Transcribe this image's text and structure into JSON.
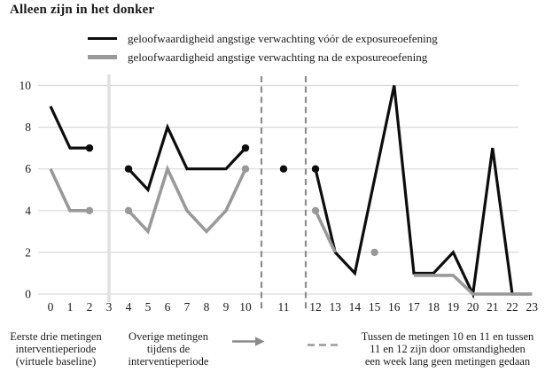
{
  "page": {
    "title": "Alleen zijn in het donker"
  },
  "legend": {
    "items": [
      {
        "label": "geloofwaardigheid angstige verwachting vóór de exposureoefening",
        "color": "#0d0d0d"
      },
      {
        "label": "geloofwaardigheid angstige verwachting na de exposureoefening",
        "color": "#999999"
      }
    ]
  },
  "notes": {
    "baseline": "Eerste drie metingen\ninterventieperiode\n(virtuele baseline)",
    "intervention": "Overige metingen\ntijdens de\ninterventieperiode",
    "gap": "Tussen de metingen 10 en 11 en tussen\n11 en 12 zijn door omstandigheden\neen week lang geen metingen gedaan"
  },
  "chart_data": {
    "type": "line",
    "title": "Alleen zijn in het donker",
    "xlabel": "",
    "ylabel": "",
    "ylim": [
      0,
      10
    ],
    "grid": true,
    "legend_position": "top",
    "y_ticks": [
      0,
      2,
      4,
      6,
      8,
      10
    ],
    "x_tick_labels": [
      "0",
      "1",
      "2",
      "3",
      "4",
      "5",
      "6",
      "7",
      "8",
      "9",
      "10",
      "11",
      "12",
      "13",
      "14",
      "15",
      "16",
      "17",
      "18",
      "19",
      "20",
      "21",
      "22",
      "23"
    ],
    "separators": {
      "solid_baseline_at_x": 3,
      "dashed_between": [
        [
          10,
          11
        ],
        [
          11,
          12
        ]
      ]
    },
    "series": [
      {
        "name": "geloofwaardigheid angstige verwachting vóór de exposureoefening",
        "color": "#0d0d0d",
        "values": [
          9,
          7,
          7,
          null,
          6,
          5,
          8,
          6,
          6,
          6,
          7,
          6,
          6,
          2,
          1,
          null,
          10,
          1,
          1,
          2,
          0,
          7,
          0,
          0
        ],
        "polylines": [
          [
            [
              0,
              9
            ],
            [
              1,
              7
            ],
            [
              2,
              7
            ]
          ],
          [
            [
              4,
              6
            ],
            [
              5,
              5
            ],
            [
              6,
              8
            ],
            [
              7,
              6
            ],
            [
              8,
              6
            ],
            [
              9,
              6
            ],
            [
              10,
              7
            ]
          ],
          [
            [
              12,
              6
            ],
            [
              13,
              2
            ],
            [
              14,
              1
            ],
            [
              16,
              10
            ],
            [
              17,
              1
            ],
            [
              18,
              1
            ],
            [
              19,
              2
            ],
            [
              20,
              0
            ],
            [
              21,
              7
            ],
            [
              22,
              0
            ],
            [
              23,
              0
            ]
          ]
        ],
        "markers": [
          [
            2,
            7
          ],
          [
            4,
            6
          ],
          [
            10,
            7
          ],
          [
            11,
            6
          ],
          [
            12,
            6
          ]
        ]
      },
      {
        "name": "geloofwaardigheid angstige verwachting na de exposureoefening",
        "color": "#999999",
        "values": [
          6,
          4,
          4,
          null,
          4,
          3,
          6,
          4,
          3,
          4,
          6,
          null,
          4,
          2,
          null,
          2,
          null,
          1,
          1,
          1,
          0,
          0,
          0,
          0
        ],
        "polylines": [
          [
            [
              0,
              6
            ],
            [
              1,
              4
            ],
            [
              2,
              4
            ]
          ],
          [
            [
              4,
              4
            ],
            [
              5,
              3
            ],
            [
              6,
              6
            ],
            [
              7,
              4
            ],
            [
              8,
              3
            ],
            [
              9,
              4
            ],
            [
              10,
              6
            ]
          ],
          [
            [
              12,
              4
            ],
            [
              13,
              2
            ]
          ],
          [
            [
              17,
              1
            ],
            [
              18,
              1
            ],
            [
              19,
              1
            ],
            [
              20,
              0
            ],
            [
              21,
              0
            ],
            [
              22,
              0
            ],
            [
              23,
              0
            ]
          ]
        ],
        "markers": [
          [
            2,
            4
          ],
          [
            4,
            4
          ],
          [
            10,
            6
          ],
          [
            12,
            4
          ],
          [
            15,
            2
          ]
        ]
      }
    ]
  }
}
